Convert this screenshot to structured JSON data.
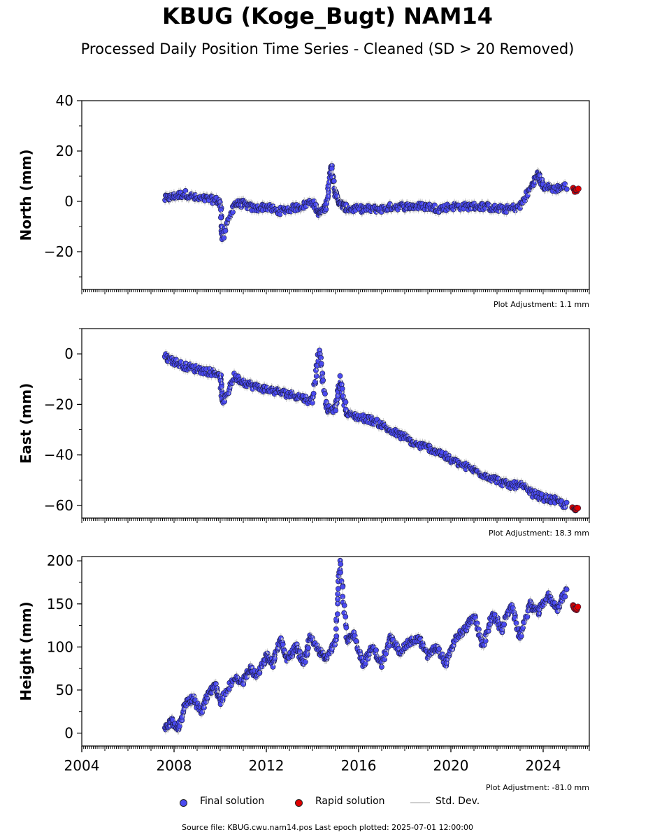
{
  "title": "KBUG (Koge_Bugt) NAM14",
  "subtitle": "Processed Daily Position Time Series - Cleaned (SD > 20 Removed)",
  "colors": {
    "final": "#4a4af0",
    "rapid": "#e00000",
    "stddev": "#cccccc"
  },
  "legend": {
    "final": "Final solution",
    "rapid": "Rapid solution",
    "stddev": "Std. Dev."
  },
  "footer": "Source file: KBUG.cwu.nam14.pos  Last epoch plotted: 2025-07-01 12:00:00",
  "chart_data": [
    {
      "type": "scatter",
      "ylabel": "North (mm)",
      "ylim": [
        -35,
        40
      ],
      "yticks": [
        -20,
        0,
        20,
        40
      ],
      "xlim": [
        2004,
        2026
      ],
      "adjustment": "Plot Adjustment: 1.1 mm",
      "series": [
        {
          "name": "Final solution",
          "x": [
            2007.6,
            2008.0,
            2008.5,
            2009.0,
            2009.5,
            2010.0,
            2010.1,
            2010.6,
            2011.0,
            2011.5,
            2012.0,
            2012.5,
            2013.0,
            2013.5,
            2014.0,
            2014.3,
            2014.6,
            2014.8,
            2015.0,
            2015.2,
            2015.5,
            2016.0,
            2016.5,
            2017.0,
            2017.5,
            2018.0,
            2018.5,
            2019.0,
            2019.5,
            2020.0,
            2020.5,
            2021.0,
            2021.5,
            2022.0,
            2022.5,
            2023.0,
            2023.5,
            2023.8,
            2024.0,
            2024.5,
            2025.0
          ],
          "y": [
            1,
            2,
            3,
            1,
            1,
            0,
            -15,
            -1,
            -1,
            -3,
            -2,
            -4,
            -3,
            -2,
            0,
            -5,
            -2,
            15,
            3,
            -1,
            -3,
            -3,
            -3,
            -3,
            -2,
            -2,
            -2,
            -2,
            -3,
            -2,
            -2,
            -2,
            -2,
            -3,
            -3,
            -2,
            6,
            11,
            6,
            5,
            6
          ]
        },
        {
          "name": "Rapid solution",
          "x": [
            2025.3,
            2025.4,
            2025.5
          ],
          "y": [
            5,
            4,
            5
          ]
        }
      ]
    },
    {
      "type": "scatter",
      "ylabel": "East (mm)",
      "ylim": [
        -65,
        10
      ],
      "yticks": [
        -60,
        -40,
        -20,
        0
      ],
      "xlim": [
        2004,
        2026
      ],
      "adjustment": "Plot Adjustment: 18.3 mm",
      "series": [
        {
          "name": "Final solution",
          "x": [
            2007.6,
            2008.0,
            2008.5,
            2009.0,
            2009.5,
            2010.0,
            2010.1,
            2010.6,
            2011.0,
            2011.5,
            2012.0,
            2012.5,
            2013.0,
            2013.5,
            2014.0,
            2014.3,
            2014.6,
            2015.0,
            2015.2,
            2015.5,
            2016.0,
            2016.5,
            2017.0,
            2017.5,
            2018.0,
            2018.5,
            2019.0,
            2019.5,
            2020.0,
            2020.5,
            2021.0,
            2021.5,
            2022.0,
            2022.5,
            2023.0,
            2023.5,
            2024.0,
            2024.5,
            2025.0
          ],
          "y": [
            -1,
            -3,
            -5,
            -6,
            -7,
            -8,
            -20,
            -9,
            -11,
            -13,
            -14,
            -15,
            -16,
            -17,
            -19,
            2,
            -22,
            -22,
            -10,
            -24,
            -25,
            -26,
            -28,
            -31,
            -33,
            -36,
            -37,
            -39,
            -42,
            -44,
            -46,
            -48,
            -50,
            -52,
            -52,
            -55,
            -57,
            -58,
            -60
          ]
        },
        {
          "name": "Rapid solution",
          "x": [
            2025.3,
            2025.4,
            2025.5
          ],
          "y": [
            -61,
            -62,
            -61
          ]
        }
      ]
    },
    {
      "type": "scatter",
      "ylabel": "Height (mm)",
      "ylim": [
        -15,
        205
      ],
      "yticks": [
        0,
        50,
        100,
        150,
        200
      ],
      "xlim": [
        2004,
        2026
      ],
      "xticks": [
        2004,
        2008,
        2012,
        2016,
        2020,
        2024
      ],
      "adjustment": "Plot Adjustment: -81.0 mm",
      "series": [
        {
          "name": "Final solution",
          "x": [
            2007.6,
            2007.9,
            2008.2,
            2008.5,
            2008.8,
            2009.2,
            2009.5,
            2009.8,
            2010.0,
            2010.6,
            2011.0,
            2011.3,
            2011.6,
            2012.0,
            2012.3,
            2012.6,
            2012.9,
            2013.3,
            2013.6,
            2013.9,
            2014.3,
            2014.6,
            2015.0,
            2015.2,
            2015.5,
            2015.8,
            2016.2,
            2016.6,
            2017.0,
            2017.4,
            2017.8,
            2018.2,
            2018.6,
            2019.0,
            2019.4,
            2019.8,
            2020.2,
            2020.6,
            2021.0,
            2021.4,
            2021.8,
            2022.2,
            2022.6,
            2023.0,
            2023.4,
            2023.8,
            2024.2,
            2024.6,
            2025.0
          ],
          "y": [
            5,
            15,
            5,
            35,
            40,
            25,
            45,
            55,
            35,
            65,
            60,
            75,
            65,
            90,
            80,
            110,
            85,
            100,
            80,
            110,
            95,
            85,
            110,
            200,
            105,
            115,
            80,
            100,
            80,
            110,
            95,
            105,
            110,
            90,
            100,
            80,
            110,
            120,
            135,
            100,
            140,
            120,
            150,
            110,
            150,
            140,
            160,
            145,
            165
          ]
        },
        {
          "name": "Rapid solution",
          "x": [
            2025.3,
            2025.4,
            2025.5
          ],
          "y": [
            148,
            143,
            146
          ]
        }
      ]
    }
  ]
}
